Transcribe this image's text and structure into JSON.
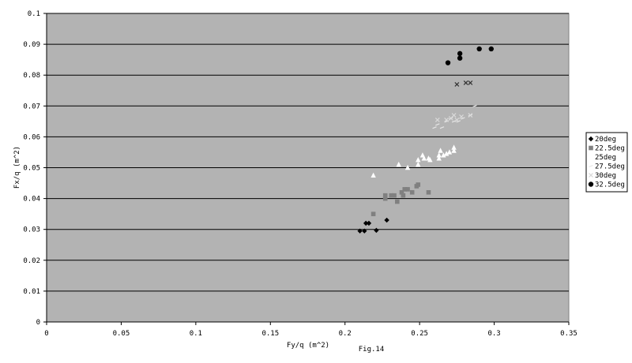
{
  "chart_data": {
    "type": "scatter",
    "title": "",
    "xlabel": "Fy/q (m^2)",
    "ylabel": "Fx/q (m^2)",
    "caption": "Fig.14",
    "xlim": [
      0,
      0.35
    ],
    "ylim": [
      0,
      0.1
    ],
    "x_ticks": [
      "0",
      "0.05",
      "0.1",
      "0.15",
      "0.2",
      "0.25",
      "0.3",
      "0.35"
    ],
    "y_ticks": [
      "0",
      "0.01",
      "0.02",
      "0.03",
      "0.04",
      "0.05",
      "0.06",
      "0.07",
      "0.08",
      "0.09",
      "0.1"
    ],
    "grid": "horizontal",
    "plot_background": "#b3b3b3",
    "legend_position": "right",
    "series": [
      {
        "name": "20deg",
        "marker": "diamond",
        "color": "#000000",
        "points": [
          [
            0.21,
            0.0295
          ],
          [
            0.213,
            0.0295
          ],
          [
            0.214,
            0.032
          ],
          [
            0.216,
            0.032
          ],
          [
            0.221,
            0.0297
          ],
          [
            0.228,
            0.033
          ]
        ]
      },
      {
        "name": "22.5deg",
        "marker": "square",
        "color": "#808080",
        "points": [
          [
            0.219,
            0.035
          ],
          [
            0.227,
            0.04
          ],
          [
            0.227,
            0.041
          ],
          [
            0.231,
            0.041
          ],
          [
            0.233,
            0.041
          ],
          [
            0.235,
            0.039
          ],
          [
            0.238,
            0.042
          ],
          [
            0.239,
            0.041
          ],
          [
            0.24,
            0.043
          ],
          [
            0.242,
            0.043
          ],
          [
            0.245,
            0.042
          ],
          [
            0.248,
            0.044
          ],
          [
            0.249,
            0.0445
          ],
          [
            0.256,
            0.042
          ]
        ]
      },
      {
        "name": "25deg",
        "marker": "triangle",
        "color": "#ffffff",
        "points": [
          [
            0.219,
            0.0475
          ],
          [
            0.236,
            0.051
          ],
          [
            0.242,
            0.05
          ],
          [
            0.249,
            0.051
          ],
          [
            0.249,
            0.0525
          ],
          [
            0.252,
            0.054
          ],
          [
            0.253,
            0.053
          ],
          [
            0.256,
            0.053
          ],
          [
            0.257,
            0.0525
          ],
          [
            0.263,
            0.053
          ],
          [
            0.263,
            0.054
          ],
          [
            0.264,
            0.0555
          ],
          [
            0.266,
            0.054
          ],
          [
            0.268,
            0.0545
          ],
          [
            0.27,
            0.055
          ],
          [
            0.273,
            0.0565
          ],
          [
            0.273,
            0.0555
          ]
        ]
      },
      {
        "name": "27.5deg",
        "marker": "dash",
        "color": "#e6e6e6",
        "points": [
          [
            0.26,
            0.063
          ],
          [
            0.262,
            0.064
          ],
          [
            0.265,
            0.063
          ],
          [
            0.268,
            0.065
          ],
          [
            0.271,
            0.066
          ],
          [
            0.273,
            0.065
          ],
          [
            0.276,
            0.065
          ],
          [
            0.279,
            0.066
          ],
          [
            0.284,
            0.067
          ],
          [
            0.287,
            0.07
          ]
        ]
      },
      {
        "name": "30deg",
        "marker": "x",
        "color": "#d9d9d9",
        "points": [
          [
            0.262,
            0.0655
          ],
          [
            0.268,
            0.0655
          ],
          [
            0.271,
            0.066
          ],
          [
            0.273,
            0.067
          ],
          [
            0.275,
            0.0655
          ],
          [
            0.278,
            0.0665
          ],
          [
            0.284,
            0.067
          ]
        ]
      },
      {
        "name": "32.5deg",
        "marker": "circle",
        "color": "#000000",
        "points": [
          [
            0.269,
            0.084
          ],
          [
            0.277,
            0.087
          ],
          [
            0.277,
            0.0855
          ],
          [
            0.29,
            0.0885
          ],
          [
            0.298,
            0.0885
          ]
        ]
      }
    ],
    "extra_markers": {
      "name": "30deg-dark",
      "marker": "x",
      "color": "#333333",
      "points": [
        [
          0.275,
          0.077
        ],
        [
          0.281,
          0.0775
        ],
        [
          0.284,
          0.0775
        ]
      ]
    }
  }
}
